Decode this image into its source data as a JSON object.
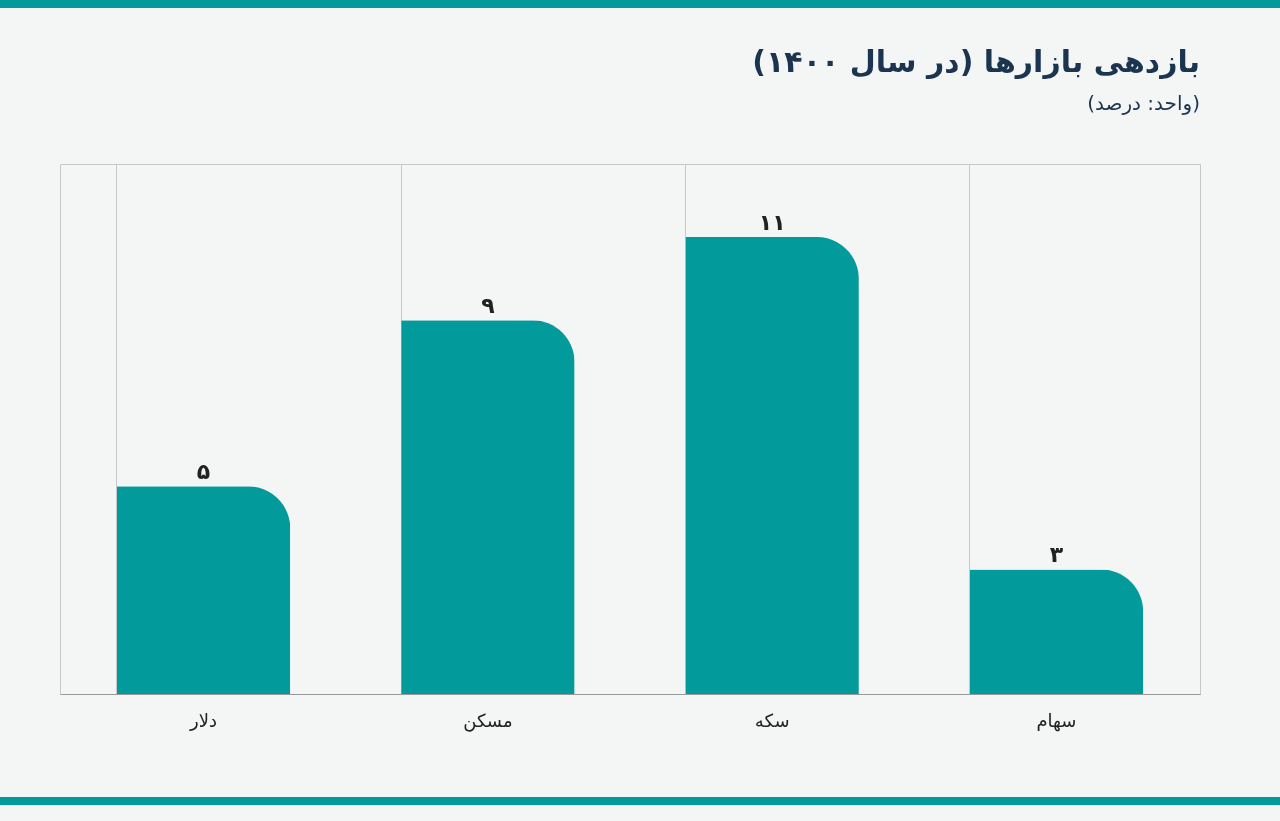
{
  "chart_data": {
    "type": "bar",
    "title": "بازدهی بازارها (در سال ۱۴۰۰)",
    "subtitle": "(واحد: درصد)",
    "categories": [
      "دلار",
      "مسکن",
      "سکه",
      "سهام"
    ],
    "values": [
      5,
      9,
      11,
      3
    ],
    "value_labels": [
      "۵",
      "۹",
      "۱۱",
      "۳"
    ],
    "color": "#029a9b",
    "grid": "x"
  }
}
